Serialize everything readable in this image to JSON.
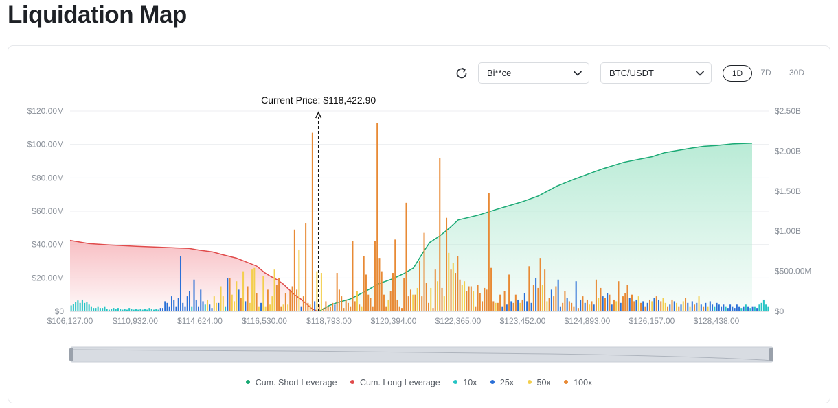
{
  "page": {
    "title": "Liquidation Map"
  },
  "controls": {
    "exchange_select": "Bi**ce",
    "pair_select": "BTC/USDT",
    "periods": [
      {
        "label": "1D",
        "active": true
      },
      {
        "label": "7D",
        "active": false
      },
      {
        "label": "30D",
        "active": false
      }
    ]
  },
  "colors": {
    "cum_short": "#19a974",
    "cum_short_fill": "#b6ead4",
    "cum_long": "#e04b4b",
    "cum_long_fill": "#f7b8bd",
    "x10": "#24c4c4",
    "x25": "#2a6fd6",
    "x50": "#f3cf4d",
    "x100": "#e88a35"
  },
  "chart_data": {
    "type": "bar",
    "current_price_label": "Current Price: $118,422.90",
    "current_price": 118422.9,
    "x_ticks": [
      "$106,127.00",
      "$110,932.00",
      "$114,624.00",
      "$116,530.00",
      "$118,793.00",
      "$120,394.00",
      "$122,365.00",
      "$123,452.00",
      "$124,893.00",
      "$126,157.00",
      "$128,438.00"
    ],
    "y_left_ticks": [
      "$0",
      "$20.00M",
      "$40.00M",
      "$60.00M",
      "$80.00M",
      "$100.00M",
      "$120.00M"
    ],
    "y_right_ticks": [
      "$0",
      "$500.00M",
      "$1.00B",
      "$1.50B",
      "$2.00B",
      "$2.50B"
    ],
    "ylim_left": [
      0,
      120
    ],
    "ylim_right": [
      0,
      2.5
    ],
    "legend": [
      "Cum. Short Leverage",
      "Cum. Long Leverage",
      "10x",
      "25x",
      "50x",
      "100x"
    ],
    "bar_leverage_order": [
      "10x",
      "25x",
      "50x",
      "100x"
    ],
    "bars_unit": "M",
    "bars": [
      [
        0,
        3.5
      ],
      [
        0,
        4.5
      ],
      [
        0,
        5.5
      ],
      [
        0,
        6.5
      ],
      [
        0,
        5
      ],
      [
        0,
        7
      ],
      [
        0,
        5
      ],
      [
        0,
        5.5
      ],
      [
        0,
        4
      ],
      [
        0,
        3
      ],
      [
        0,
        2
      ],
      [
        0,
        2
      ],
      [
        0,
        3
      ],
      [
        0,
        2
      ],
      [
        0,
        2
      ],
      [
        0,
        3
      ],
      [
        0,
        1.5
      ],
      [
        0,
        1
      ],
      [
        0,
        1.5
      ],
      [
        0,
        2
      ],
      [
        0,
        1.5
      ],
      [
        0,
        2
      ],
      [
        0,
        1.5
      ],
      [
        0,
        1
      ],
      [
        0,
        1.5
      ],
      [
        0,
        1
      ],
      [
        0,
        2
      ],
      [
        0,
        1.5
      ],
      [
        0,
        1
      ],
      [
        0,
        1.5
      ],
      [
        0,
        1
      ],
      [
        0,
        1.5
      ],
      [
        0,
        1
      ],
      [
        0,
        1.5
      ],
      [
        0,
        1
      ],
      [
        0,
        2
      ],
      [
        0,
        1.5
      ],
      [
        0,
        1
      ],
      [
        0,
        1.5
      ],
      [
        0,
        1
      ],
      [
        1,
        2
      ],
      [
        1,
        2
      ],
      [
        1,
        6
      ],
      [
        1,
        5
      ],
      [
        1,
        3
      ],
      [
        1,
        9
      ],
      [
        1,
        7
      ],
      [
        1,
        3
      ],
      [
        1,
        8
      ],
      [
        1,
        33
      ],
      [
        1,
        5
      ],
      [
        1,
        3
      ],
      [
        1,
        9
      ],
      [
        1,
        12
      ],
      [
        0,
        3
      ],
      [
        1,
        19
      ],
      [
        1,
        7
      ],
      [
        1,
        3
      ],
      [
        1,
        13
      ],
      [
        1,
        6
      ],
      [
        0,
        4
      ],
      [
        2,
        7
      ],
      [
        1,
        4
      ],
      [
        1,
        2
      ],
      [
        2,
        9
      ],
      [
        2,
        5
      ],
      [
        1,
        5
      ],
      [
        2,
        15
      ],
      [
        2,
        9
      ],
      [
        0,
        3
      ],
      [
        1,
        20
      ],
      [
        3,
        20
      ],
      [
        2,
        10
      ],
      [
        2,
        6
      ],
      [
        2,
        18
      ],
      [
        1,
        13
      ],
      [
        3,
        8
      ],
      [
        2,
        24
      ],
      [
        1,
        6
      ],
      [
        3,
        15
      ],
      [
        2,
        5
      ],
      [
        2,
        25
      ],
      [
        2,
        26
      ],
      [
        3,
        11
      ],
      [
        2,
        3
      ],
      [
        1,
        5
      ],
      [
        2,
        21
      ],
      [
        2,
        3
      ],
      [
        3,
        13
      ],
      [
        2,
        4
      ],
      [
        2,
        9
      ],
      [
        2,
        25
      ],
      [
        3,
        16
      ],
      [
        3,
        20
      ],
      [
        3,
        3
      ],
      [
        2,
        4
      ],
      [
        3,
        11
      ],
      [
        2,
        4
      ],
      [
        3,
        12
      ],
      [
        3,
        15
      ],
      [
        3,
        49
      ],
      [
        3,
        13
      ],
      [
        2,
        37
      ],
      [
        1,
        3
      ],
      [
        3,
        9
      ],
      [
        3,
        53
      ],
      [
        3,
        5
      ],
      [
        2,
        4
      ],
      [
        3,
        107
      ],
      [
        1,
        6
      ],
      [
        2,
        24
      ],
      [
        3,
        4
      ],
      [
        2,
        23
      ],
      [
        3,
        2
      ],
      [
        3,
        6
      ],
      [
        3,
        3
      ],
      [
        3,
        3
      ],
      [
        3,
        5
      ],
      [
        1,
        4
      ],
      [
        3,
        23
      ],
      [
        3,
        13
      ],
      [
        3,
        9
      ],
      [
        3,
        2
      ],
      [
        3,
        7
      ],
      [
        3,
        5
      ],
      [
        3,
        3
      ],
      [
        3,
        42
      ],
      [
        3,
        6
      ],
      [
        2,
        12
      ],
      [
        3,
        4
      ],
      [
        2,
        3
      ],
      [
        3,
        33
      ],
      [
        3,
        22
      ],
      [
        3,
        10
      ],
      [
        3,
        8
      ],
      [
        3,
        3
      ],
      [
        3,
        42
      ],
      [
        3,
        113
      ],
      [
        3,
        32
      ],
      [
        3,
        24
      ],
      [
        3,
        10
      ],
      [
        3,
        3
      ],
      [
        2,
        7
      ],
      [
        3,
        12
      ],
      [
        3,
        23
      ],
      [
        3,
        43
      ],
      [
        3,
        7
      ],
      [
        3,
        3
      ],
      [
        3,
        2
      ],
      [
        3,
        20
      ],
      [
        3,
        65
      ],
      [
        3,
        9
      ],
      [
        3,
        13
      ],
      [
        2,
        10
      ],
      [
        3,
        10
      ],
      [
        2,
        14
      ],
      [
        3,
        30
      ],
      [
        3,
        9
      ],
      [
        3,
        47
      ],
      [
        3,
        17
      ],
      [
        3,
        5
      ],
      [
        2,
        14
      ],
      [
        3,
        2
      ],
      [
        3,
        25
      ],
      [
        2,
        18
      ],
      [
        3,
        92
      ],
      [
        3,
        14
      ],
      [
        2,
        9
      ],
      [
        3,
        56
      ],
      [
        2,
        35
      ],
      [
        3,
        25
      ],
      [
        2,
        29
      ],
      [
        3,
        23
      ],
      [
        3,
        33
      ],
      [
        3,
        19
      ],
      [
        2,
        16
      ],
      [
        2,
        18
      ],
      [
        3,
        12
      ],
      [
        3,
        15
      ],
      [
        3,
        15
      ],
      [
        2,
        12
      ],
      [
        3,
        3
      ],
      [
        3,
        16
      ],
      [
        3,
        11
      ],
      [
        3,
        6
      ],
      [
        3,
        14
      ],
      [
        3,
        13
      ],
      [
        3,
        71
      ],
      [
        3,
        26
      ],
      [
        3,
        6
      ],
      [
        2,
        5
      ],
      [
        3,
        5
      ],
      [
        3,
        10
      ],
      [
        1,
        3
      ],
      [
        3,
        12
      ],
      [
        1,
        4
      ],
      [
        3,
        22
      ],
      [
        1,
        6
      ],
      [
        3,
        5
      ],
      [
        3,
        10
      ],
      [
        1,
        7
      ],
      [
        2,
        5
      ],
      [
        3,
        7
      ],
      [
        1,
        11
      ],
      [
        1,
        6
      ],
      [
        3,
        27
      ],
      [
        1,
        5
      ],
      [
        3,
        16
      ],
      [
        1,
        20
      ],
      [
        3,
        14
      ],
      [
        3,
        32
      ],
      [
        2,
        16
      ],
      [
        3,
        25
      ],
      [
        2,
        6
      ],
      [
        3,
        8
      ],
      [
        1,
        13
      ],
      [
        3,
        9
      ],
      [
        3,
        15
      ],
      [
        1,
        19
      ],
      [
        1,
        3
      ],
      [
        3,
        5
      ],
      [
        3,
        12
      ],
      [
        1,
        8
      ],
      [
        3,
        6
      ],
      [
        3,
        5
      ],
      [
        3,
        3
      ],
      [
        1,
        18
      ],
      [
        3,
        2
      ],
      [
        1,
        7
      ],
      [
        3,
        9
      ],
      [
        1,
        5
      ],
      [
        3,
        7
      ],
      [
        2,
        4
      ],
      [
        3,
        6
      ],
      [
        1,
        4
      ],
      [
        3,
        19
      ],
      [
        2,
        8
      ],
      [
        3,
        14
      ],
      [
        1,
        9
      ],
      [
        3,
        8
      ],
      [
        1,
        11
      ],
      [
        3,
        10
      ],
      [
        1,
        4
      ],
      [
        3,
        7
      ],
      [
        2,
        6
      ],
      [
        3,
        18
      ],
      [
        1,
        5
      ],
      [
        3,
        9
      ],
      [
        3,
        11
      ],
      [
        3,
        16
      ],
      [
        1,
        8
      ],
      [
        3,
        10
      ],
      [
        3,
        6
      ],
      [
        1,
        7
      ],
      [
        2,
        9
      ],
      [
        3,
        5
      ],
      [
        1,
        6
      ],
      [
        3,
        3
      ],
      [
        1,
        5
      ],
      [
        3,
        7
      ],
      [
        2,
        6
      ],
      [
        1,
        8
      ],
      [
        3,
        9
      ],
      [
        1,
        7
      ],
      [
        3,
        6
      ],
      [
        2,
        8
      ],
      [
        2,
        5
      ],
      [
        3,
        3
      ],
      [
        1,
        4
      ],
      [
        3,
        7
      ],
      [
        1,
        6
      ],
      [
        2,
        5
      ],
      [
        3,
        3
      ],
      [
        1,
        4
      ],
      [
        2,
        6
      ],
      [
        3,
        8
      ],
      [
        1,
        5
      ],
      [
        2,
        3
      ],
      [
        1,
        6
      ],
      [
        3,
        4
      ],
      [
        1,
        5
      ],
      [
        2,
        9
      ],
      [
        1,
        4
      ],
      [
        3,
        3
      ],
      [
        1,
        5
      ],
      [
        2,
        3
      ],
      [
        1,
        6
      ],
      [
        1,
        4
      ],
      [
        0,
        3
      ],
      [
        1,
        5
      ],
      [
        1,
        4
      ],
      [
        1,
        3
      ],
      [
        1,
        4
      ],
      [
        0,
        3
      ],
      [
        1,
        2
      ],
      [
        1,
        4
      ],
      [
        1,
        3
      ],
      [
        1,
        2
      ],
      [
        1,
        4
      ],
      [
        1,
        3
      ],
      [
        0,
        2
      ],
      [
        1,
        3
      ],
      [
        0,
        4
      ],
      [
        1,
        3
      ],
      [
        0,
        2
      ],
      [
        1,
        3
      ],
      [
        0,
        3
      ],
      [
        1,
        2
      ],
      [
        0,
        4
      ],
      [
        0,
        5
      ],
      [
        0,
        7
      ],
      [
        0,
        4
      ],
      [
        0,
        3
      ]
    ],
    "cum_long_unit": "M",
    "cum_long": [
      [
        106127,
        42.5
      ],
      [
        107500,
        40.6
      ],
      [
        109000,
        39.8
      ],
      [
        111000,
        38.9
      ],
      [
        113000,
        38.1
      ],
      [
        114000,
        37.7
      ],
      [
        114600,
        36.6
      ],
      [
        115000,
        35.6
      ],
      [
        115300,
        33.9
      ],
      [
        115700,
        31.9
      ],
      [
        116000,
        29.5
      ],
      [
        116300,
        27.1
      ],
      [
        116530,
        23.2
      ],
      [
        116750,
        20.9
      ],
      [
        117000,
        18.7
      ],
      [
        117200,
        16.2
      ],
      [
        117400,
        13.0
      ],
      [
        117600,
        9.8
      ],
      [
        117800,
        7.4
      ],
      [
        118000,
        4.5
      ],
      [
        118200,
        1.4
      ],
      [
        118422.9,
        0
      ]
    ],
    "cum_short_unit": "B",
    "cum_short": [
      [
        118422.9,
        0
      ],
      [
        118600,
        0.03
      ],
      [
        118793,
        0.07
      ],
      [
        119000,
        0.11
      ],
      [
        119300,
        0.15
      ],
      [
        119700,
        0.25
      ],
      [
        120000,
        0.34
      ],
      [
        120394,
        0.41
      ],
      [
        120700,
        0.47
      ],
      [
        121000,
        0.54
      ],
      [
        121300,
        0.74
      ],
      [
        121500,
        0.86
      ],
      [
        121800,
        0.94
      ],
      [
        122100,
        1.04
      ],
      [
        122365,
        1.14
      ],
      [
        122700,
        1.2
      ],
      [
        123000,
        1.27
      ],
      [
        123452,
        1.37
      ],
      [
        123800,
        1.44
      ],
      [
        124200,
        1.56
      ],
      [
        124600,
        1.65
      ],
      [
        124893,
        1.71
      ],
      [
        125200,
        1.78
      ],
      [
        125600,
        1.86
      ],
      [
        126157,
        1.93
      ],
      [
        126600,
        1.98
      ],
      [
        127100,
        2.01
      ],
      [
        127600,
        2.04
      ],
      [
        128000,
        2.06
      ],
      [
        128438,
        2.07
      ],
      [
        129000,
        2.09
      ],
      [
        129700,
        2.1
      ]
    ]
  }
}
